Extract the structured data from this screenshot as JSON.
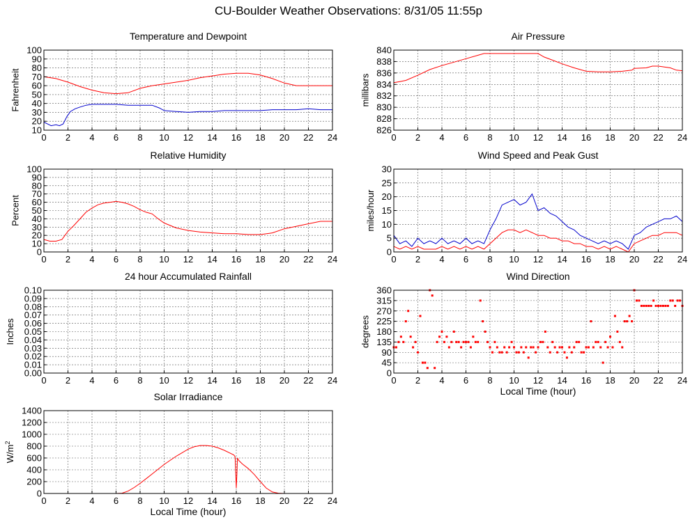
{
  "page": {
    "title": "CU-Boulder Weather Observations: 8/31/05 11:55p"
  },
  "colors": {
    "series_red": "#ff0000",
    "series_blue": "#0000cc",
    "grid": "#555555"
  },
  "chart_data": [
    {
      "id": "temp",
      "type": "line",
      "title": "Temperature and Dewpoint",
      "xlabel": "",
      "ylabel": "Fahrenheit",
      "xlim": [
        0,
        24
      ],
      "ylim": [
        10,
        100
      ],
      "xticks": [
        "0",
        "2",
        "4",
        "6",
        "8",
        "10",
        "12",
        "14",
        "16",
        "18",
        "20",
        "22",
        "24"
      ],
      "yticks": [
        "10",
        "20",
        "30",
        "40",
        "50",
        "60",
        "70",
        "80",
        "90",
        "100"
      ],
      "grid": true,
      "series": [
        {
          "color": "#ff0000",
          "x": [
            0,
            1,
            2,
            3,
            4,
            5,
            6,
            7,
            8,
            9,
            10,
            11,
            12,
            13,
            14,
            15,
            16,
            17,
            18,
            19,
            20,
            21,
            22,
            23,
            24
          ],
          "y": [
            70,
            68,
            64,
            59,
            55,
            52,
            51,
            52,
            57,
            60,
            62,
            64,
            66,
            69,
            71,
            73,
            74,
            74,
            72,
            68,
            63,
            60,
            60,
            60,
            60
          ]
        },
        {
          "color": "#0000cc",
          "x": [
            0,
            0.3,
            0.6,
            1,
            1.3,
            1.6,
            1.9,
            2.2,
            2.6,
            3,
            3.5,
            4,
            5,
            6,
            7,
            8,
            9,
            9.6,
            10,
            11,
            12,
            13,
            14,
            15,
            16,
            17,
            18,
            19,
            20,
            21,
            22,
            23,
            24
          ],
          "y": [
            19,
            17,
            15,
            16,
            15,
            17,
            25,
            31,
            34,
            36,
            38,
            39,
            39,
            39,
            38,
            38,
            38,
            35,
            32,
            31,
            30,
            31,
            31,
            32,
            32,
            32,
            32,
            33,
            33,
            33,
            34,
            33,
            33
          ]
        }
      ]
    },
    {
      "id": "pressure",
      "type": "line",
      "title": "Air Pressure",
      "xlabel": "",
      "ylabel": "millibars",
      "xlim": [
        0,
        24
      ],
      "ylim": [
        826,
        840
      ],
      "xticks": [
        "0",
        "2",
        "4",
        "6",
        "8",
        "10",
        "12",
        "14",
        "16",
        "18",
        "20",
        "22",
        "24"
      ],
      "yticks": [
        "826",
        "828",
        "830",
        "832",
        "834",
        "836",
        "838",
        "840"
      ],
      "grid": true,
      "series": [
        {
          "color": "#ff0000",
          "x": [
            0,
            0.5,
            1,
            2,
            3,
            4,
            5,
            6,
            7,
            7.5,
            8,
            9,
            10,
            11,
            12,
            12.5,
            13,
            14,
            15,
            16,
            17,
            18,
            19,
            19.8,
            20,
            21,
            21.5,
            22,
            23,
            23.5,
            24
          ],
          "y": [
            834.3,
            834.5,
            834.7,
            835.6,
            836.6,
            837.3,
            837.9,
            838.5,
            839.1,
            839.4,
            839.4,
            839.4,
            839.4,
            839.4,
            839.4,
            838.8,
            838.4,
            837.6,
            836.9,
            836.3,
            836.2,
            836.2,
            836.3,
            836.5,
            836.8,
            836.9,
            837.2,
            837.2,
            836.9,
            836.5,
            836.4
          ]
        }
      ]
    },
    {
      "id": "humidity",
      "type": "line",
      "title": "Relative Humidity",
      "xlabel": "",
      "ylabel": "Percent",
      "xlim": [
        0,
        24
      ],
      "ylim": [
        0,
        100
      ],
      "xticks": [
        "0",
        "2",
        "4",
        "6",
        "8",
        "10",
        "12",
        "14",
        "16",
        "18",
        "20",
        "22",
        "24"
      ],
      "yticks": [
        "0",
        "10",
        "20",
        "30",
        "40",
        "50",
        "60",
        "70",
        "80",
        "90",
        "100"
      ],
      "grid": true,
      "series": [
        {
          "color": "#ff0000",
          "x": [
            0,
            0.5,
            1,
            1.5,
            2,
            2.5,
            3,
            3.5,
            4,
            4.5,
            5,
            5.5,
            6,
            6.5,
            7,
            7.5,
            8,
            8.5,
            9,
            9.5,
            10,
            11,
            12,
            13,
            14,
            15,
            16,
            17,
            18,
            19,
            20,
            21,
            22,
            23,
            24
          ],
          "y": [
            15,
            13,
            13,
            15,
            25,
            32,
            40,
            48,
            53,
            57,
            59,
            60,
            61,
            60,
            58,
            55,
            51,
            48,
            46,
            40,
            35,
            29,
            26,
            24,
            23,
            22,
            22,
            21,
            21,
            23,
            28,
            31,
            34,
            37,
            37
          ]
        }
      ]
    },
    {
      "id": "wind",
      "type": "line",
      "title": "Wind Speed and Peak Gust",
      "xlabel": "",
      "ylabel": "miles/hour",
      "xlim": [
        0,
        24
      ],
      "ylim": [
        0,
        30
      ],
      "xticks": [
        "0",
        "2",
        "4",
        "6",
        "8",
        "10",
        "12",
        "14",
        "16",
        "18",
        "20",
        "22",
        "24"
      ],
      "yticks": [
        "0",
        "5",
        "10",
        "15",
        "20",
        "25",
        "30"
      ],
      "grid": true,
      "series": [
        {
          "color": "#0000cc",
          "x": [
            0,
            0.5,
            1,
            1.5,
            2,
            2.5,
            3,
            3.5,
            4,
            4.5,
            5,
            5.5,
            6,
            6.5,
            7,
            7.5,
            8,
            8.5,
            9,
            9.5,
            10,
            10.5,
            11,
            11.5,
            12,
            12.5,
            13,
            13.5,
            14,
            14.5,
            15,
            15.5,
            16,
            16.5,
            17,
            17.5,
            18,
            18.5,
            19,
            19.5,
            20,
            20.5,
            21,
            21.5,
            22,
            22.5,
            23,
            23.5,
            24
          ],
          "y": [
            6,
            3,
            4,
            2,
            5,
            3,
            4,
            3,
            5,
            3,
            4,
            3,
            5,
            3,
            4,
            3,
            8,
            12,
            17,
            18,
            19,
            17,
            18,
            21,
            15,
            16,
            14,
            13,
            11,
            9,
            8,
            6,
            5,
            4,
            3,
            4,
            3,
            4,
            3,
            1,
            6,
            7,
            9,
            10,
            11,
            12,
            12,
            13,
            11
          ]
        },
        {
          "color": "#ff0000",
          "x": [
            0,
            0.5,
            1,
            1.5,
            2,
            2.5,
            3,
            3.5,
            4,
            4.5,
            5,
            5.5,
            6,
            6.5,
            7,
            7.5,
            8,
            8.5,
            9,
            9.5,
            10,
            10.5,
            11,
            11.5,
            12,
            12.5,
            13,
            13.5,
            14,
            14.5,
            15,
            15.5,
            16,
            16.5,
            17,
            17.5,
            18,
            18.5,
            19,
            19.5,
            20,
            20.5,
            21,
            21.5,
            22,
            22.5,
            23,
            23.5,
            24
          ],
          "y": [
            2,
            1,
            2,
            1,
            2,
            1,
            1,
            1,
            2,
            1,
            2,
            1,
            2,
            1,
            2,
            1,
            3,
            5,
            7,
            8,
            8,
            7,
            8,
            7,
            6,
            6,
            5,
            5,
            4,
            4,
            3,
            3,
            2,
            2,
            1,
            2,
            1,
            2,
            1,
            0,
            3,
            4,
            5,
            6,
            6,
            7,
            7,
            7,
            6
          ]
        }
      ]
    },
    {
      "id": "rain",
      "type": "line",
      "title": "24 hour Accumulated Rainfall",
      "xlabel": "",
      "ylabel": "Inches",
      "xlim": [
        0,
        24
      ],
      "ylim": [
        0,
        0.1
      ],
      "xticks": [
        "0",
        "2",
        "4",
        "6",
        "8",
        "10",
        "12",
        "14",
        "16",
        "18",
        "20",
        "22",
        "24"
      ],
      "yticks": [
        "0.00",
        "0.01",
        "0.02",
        "0.03",
        "0.04",
        "0.05",
        "0.06",
        "0.07",
        "0.08",
        "0.09",
        "0.10"
      ],
      "grid": true,
      "series": [
        {
          "color": "#ff0000",
          "x": [
            0,
            24
          ],
          "y": [
            0,
            0
          ]
        }
      ]
    },
    {
      "id": "direction",
      "type": "scatter",
      "title": "Wind Direction",
      "xlabel": "Local Time (hour)",
      "ylabel": "degrees",
      "xlim": [
        0,
        24
      ],
      "ylim": [
        0,
        360
      ],
      "xticks": [
        "0",
        "2",
        "4",
        "6",
        "8",
        "10",
        "12",
        "14",
        "16",
        "18",
        "20",
        "22",
        "24"
      ],
      "yticks": [
        "0",
        "45",
        "90",
        "135",
        "180",
        "225",
        "270",
        "315",
        "360"
      ],
      "grid": true,
      "series": [
        {
          "color": "#ff0000",
          "x": [
            0,
            0.2,
            0.4,
            0.6,
            0.8,
            1,
            1.2,
            1.4,
            1.6,
            1.8,
            2,
            2.2,
            2.4,
            2.6,
            2.8,
            3,
            3.2,
            3.4,
            3.6,
            3.8,
            4,
            4.2,
            4.4,
            4.6,
            4.8,
            5,
            5.2,
            5.4,
            5.6,
            5.8,
            6,
            6.2,
            6.4,
            6.6,
            6.8,
            7,
            7.2,
            7.4,
            7.6,
            7.8,
            8,
            8.2,
            8.4,
            8.6,
            8.8,
            9,
            9.2,
            9.4,
            9.6,
            9.8,
            10,
            10.2,
            10.4,
            10.6,
            10.8,
            11,
            11.2,
            11.4,
            11.6,
            11.8,
            12,
            12.2,
            12.4,
            12.6,
            12.8,
            13,
            13.2,
            13.4,
            13.6,
            13.8,
            14,
            14.2,
            14.4,
            14.6,
            14.8,
            15,
            15.2,
            15.4,
            15.6,
            15.8,
            16,
            16.2,
            16.4,
            16.6,
            16.8,
            17,
            17.2,
            17.4,
            17.6,
            17.8,
            18,
            18.2,
            18.4,
            18.6,
            18.8,
            19,
            19.2,
            19.4,
            19.6,
            19.8,
            20,
            20.2,
            20.4,
            20.6,
            20.8,
            21,
            21.2,
            21.4,
            21.6,
            21.8,
            22,
            22.2,
            22.4,
            22.6,
            22.8,
            23,
            23.2,
            23.4,
            23.6,
            23.8,
            24
          ],
          "y": [
            112,
            112,
            135,
            158,
            135,
            225,
            270,
            158,
            112,
            135,
            90,
            248,
            45,
            45,
            22,
            360,
            337,
            22,
            135,
            158,
            180,
            135,
            158,
            112,
            135,
            180,
            135,
            135,
            112,
            135,
            135,
            135,
            112,
            158,
            135,
            135,
            315,
            225,
            180,
            135,
            112,
            90,
            135,
            112,
            90,
            90,
            112,
            90,
            112,
            135,
            112,
            90,
            90,
            112,
            90,
            112,
            67,
            112,
            112,
            90,
            112,
            135,
            135,
            180,
            112,
            90,
            135,
            112,
            90,
            112,
            112,
            90,
            67,
            112,
            90,
            112,
            135,
            135,
            90,
            90,
            112,
            112,
            225,
            112,
            135,
            135,
            112,
            45,
            135,
            112,
            158,
            112,
            248,
            180,
            135,
            112,
            225,
            225,
            248,
            225,
            360,
            315,
            315,
            292,
            292,
            292,
            292,
            292,
            315,
            292,
            292,
            292,
            292,
            292,
            292,
            315,
            315,
            292,
            315,
            315,
            292
          ]
        }
      ]
    },
    {
      "id": "solar",
      "type": "line",
      "title": "Solar Irradiance",
      "xlabel": "Local Time (hour)",
      "ylabel": "W/m",
      "ylabel_sup": "2",
      "xlim": [
        0,
        24
      ],
      "ylim": [
        0,
        1400
      ],
      "xticks": [
        "0",
        "2",
        "4",
        "6",
        "8",
        "10",
        "12",
        "14",
        "16",
        "18",
        "20",
        "22",
        "24"
      ],
      "yticks": [
        "0",
        "200",
        "400",
        "600",
        "800",
        "1000",
        "1200",
        "1400"
      ],
      "grid": true,
      "series": [
        {
          "color": "#ff0000",
          "x": [
            0,
            6,
            6.5,
            7,
            7.5,
            8,
            8.5,
            9,
            9.5,
            10,
            10.5,
            11,
            11.5,
            12,
            12.5,
            13,
            13.5,
            14,
            14.5,
            15,
            15.5,
            15.8,
            15.9,
            16,
            16.05,
            16.1,
            16.2,
            16.5,
            17,
            17.5,
            18,
            18.5,
            19,
            19.5,
            20,
            24
          ],
          "y": [
            0,
            0,
            5,
            40,
            100,
            170,
            250,
            330,
            410,
            490,
            560,
            630,
            690,
            750,
            790,
            810,
            810,
            800,
            770,
            730,
            680,
            650,
            620,
            90,
            330,
            600,
            560,
            500,
            420,
            320,
            200,
            90,
            25,
            5,
            0,
            0
          ]
        }
      ]
    }
  ]
}
